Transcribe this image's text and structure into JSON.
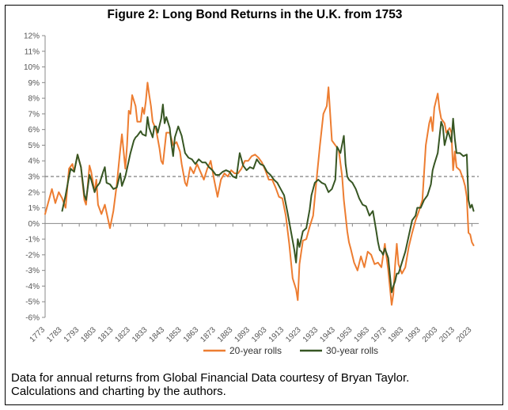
{
  "figure": {
    "title": "Figure 2: Long Bond Returns in the U.K. from 1753",
    "note_lines": [
      "Data for annual returns from Global Financial Data courtesy of Bryan Taylor.",
      "Calculations and charting by the authors."
    ]
  },
  "chart_data": {
    "type": "line",
    "title": "Figure 2: Long Bond Returns in the U.K. from 1753",
    "xlabel": "",
    "ylabel": "",
    "xlim": [
      1773,
      2027
    ],
    "ylim": [
      -6,
      12
    ],
    "x_ticks": [
      "1773",
      "1783",
      "1793",
      "1803",
      "1813",
      "1823",
      "1833",
      "1843",
      "1853",
      "1863",
      "1873",
      "1883",
      "1893",
      "1903",
      "1913",
      "1923",
      "1933",
      "1943",
      "1953",
      "1963",
      "1973",
      "1983",
      "1993",
      "2003",
      "2013",
      "2023"
    ],
    "y_ticks": [
      "12%",
      "11%",
      "10%",
      "9%",
      "8%",
      "7%",
      "6%",
      "5%",
      "4%",
      "3%",
      "2%",
      "1%",
      "0%",
      "-1%",
      "-2%",
      "-3%",
      "-4%",
      "-5%",
      "-6%"
    ],
    "reference_line": {
      "y": 3.0,
      "style": "dashed",
      "color": "#7f7f7f"
    },
    "grid": false,
    "legend_position": "bottom-right",
    "series": [
      {
        "name": "20-year rolls",
        "color": "#ed7d31",
        "points": [
          [
            1773,
            0.6
          ],
          [
            1775,
            1.4
          ],
          [
            1777,
            2.2
          ],
          [
            1779,
            1.3
          ],
          [
            1781,
            2.0
          ],
          [
            1783,
            1.6
          ],
          [
            1785,
            1.0
          ],
          [
            1787,
            3.5
          ],
          [
            1789,
            3.8
          ],
          [
            1790,
            3.3
          ],
          [
            1792,
            4.4
          ],
          [
            1794,
            3.6
          ],
          [
            1796,
            1.5
          ],
          [
            1797,
            1.2
          ],
          [
            1799,
            3.7
          ],
          [
            1800,
            3.3
          ],
          [
            1802,
            2.0
          ],
          [
            1803,
            2.8
          ],
          [
            1804,
            1.2
          ],
          [
            1806,
            0.6
          ],
          [
            1808,
            1.2
          ],
          [
            1810,
            0.2
          ],
          [
            1811,
            -0.3
          ],
          [
            1813,
            0.8
          ],
          [
            1815,
            2.5
          ],
          [
            1817,
            4.7
          ],
          [
            1818,
            5.7
          ],
          [
            1820,
            3.5
          ],
          [
            1821,
            5.0
          ],
          [
            1822,
            7.2
          ],
          [
            1823,
            7.0
          ],
          [
            1824,
            8.2
          ],
          [
            1826,
            7.5
          ],
          [
            1827,
            6.5
          ],
          [
            1829,
            6.5
          ],
          [
            1830,
            7.4
          ],
          [
            1831,
            7.0
          ],
          [
            1832,
            7.8
          ],
          [
            1833,
            9.0
          ],
          [
            1834,
            8.2
          ],
          [
            1835,
            7.5
          ],
          [
            1836,
            6.5
          ],
          [
            1838,
            6.0
          ],
          [
            1840,
            4.8
          ],
          [
            1841,
            4.0
          ],
          [
            1842,
            3.8
          ],
          [
            1844,
            5.8
          ],
          [
            1846,
            5.8
          ],
          [
            1848,
            5.0
          ],
          [
            1850,
            5.2
          ],
          [
            1852,
            4.6
          ],
          [
            1853,
            3.8
          ],
          [
            1855,
            2.6
          ],
          [
            1856,
            2.4
          ],
          [
            1858,
            3.6
          ],
          [
            1860,
            3.2
          ],
          [
            1862,
            3.8
          ],
          [
            1864,
            3.3
          ],
          [
            1866,
            2.8
          ],
          [
            1868,
            3.5
          ],
          [
            1870,
            4.0
          ],
          [
            1872,
            2.8
          ],
          [
            1874,
            1.7
          ],
          [
            1876,
            2.8
          ],
          [
            1878,
            3.2
          ],
          [
            1880,
            3.0
          ],
          [
            1882,
            3.4
          ],
          [
            1884,
            3.2
          ],
          [
            1886,
            3.2
          ],
          [
            1888,
            3.5
          ],
          [
            1890,
            4.0
          ],
          [
            1892,
            4.0
          ],
          [
            1894,
            4.3
          ],
          [
            1896,
            4.4
          ],
          [
            1898,
            4.2
          ],
          [
            1900,
            3.9
          ],
          [
            1902,
            3.4
          ],
          [
            1904,
            2.8
          ],
          [
            1906,
            2.8
          ],
          [
            1908,
            2.3
          ],
          [
            1910,
            1.7
          ],
          [
            1912,
            1.6
          ],
          [
            1914,
            0.5
          ],
          [
            1916,
            -1.3
          ],
          [
            1918,
            -3.5
          ],
          [
            1920,
            -4.2
          ],
          [
            1921,
            -4.9
          ],
          [
            1922,
            -2.6
          ],
          [
            1924,
            -1.1
          ],
          [
            1926,
            -1.0
          ],
          [
            1928,
            -0.2
          ],
          [
            1930,
            0.5
          ],
          [
            1932,
            2.8
          ],
          [
            1934,
            5.0
          ],
          [
            1936,
            7.0
          ],
          [
            1938,
            7.5
          ],
          [
            1939,
            8.7
          ],
          [
            1940,
            7.0
          ],
          [
            1941,
            5.3
          ],
          [
            1943,
            5.0
          ],
          [
            1945,
            4.7
          ],
          [
            1947,
            3.0
          ],
          [
            1948,
            1.5
          ],
          [
            1950,
            -0.5
          ],
          [
            1951,
            -1.2
          ],
          [
            1952,
            -1.6
          ],
          [
            1954,
            -2.5
          ],
          [
            1956,
            -3.0
          ],
          [
            1958,
            -2.1
          ],
          [
            1960,
            -2.8
          ],
          [
            1962,
            -1.8
          ],
          [
            1964,
            -2.0
          ],
          [
            1966,
            -2.6
          ],
          [
            1968,
            -2.5
          ],
          [
            1970,
            -2.8
          ],
          [
            1972,
            -1.3
          ],
          [
            1974,
            -3.0
          ],
          [
            1976,
            -5.2
          ],
          [
            1977,
            -4.5
          ],
          [
            1978,
            -2.7
          ],
          [
            1979,
            -1.3
          ],
          [
            1980,
            -2.6
          ],
          [
            1982,
            -3.2
          ],
          [
            1984,
            -2.8
          ],
          [
            1986,
            -1.5
          ],
          [
            1988,
            -0.6
          ],
          [
            1990,
            0.2
          ],
          [
            1992,
            0.8
          ],
          [
            1994,
            1.5
          ],
          [
            1996,
            5.0
          ],
          [
            1998,
            6.4
          ],
          [
            1999,
            6.8
          ],
          [
            2000,
            5.9
          ],
          [
            2001,
            7.4
          ],
          [
            2003,
            8.3
          ],
          [
            2004,
            7.3
          ],
          [
            2005,
            6.7
          ],
          [
            2007,
            6.4
          ],
          [
            2008,
            5.8
          ],
          [
            2010,
            6.1
          ],
          [
            2011,
            5.8
          ],
          [
            2012,
            3.4
          ],
          [
            2013,
            4.6
          ],
          [
            2014,
            3.6
          ],
          [
            2016,
            3.4
          ],
          [
            2018,
            2.8
          ],
          [
            2019,
            2.4
          ],
          [
            2020,
            1.7
          ],
          [
            2021,
            -0.6
          ],
          [
            2022,
            -0.7
          ],
          [
            2023,
            -1.2
          ],
          [
            2024,
            -1.4
          ]
        ]
      },
      {
        "name": "30-year rolls",
        "color": "#375623",
        "points": [
          [
            1783,
            0.8
          ],
          [
            1785,
            1.8
          ],
          [
            1787,
            3.0
          ],
          [
            1788,
            3.5
          ],
          [
            1790,
            3.3
          ],
          [
            1792,
            4.4
          ],
          [
            1794,
            3.6
          ],
          [
            1796,
            1.8
          ],
          [
            1797,
            1.5
          ],
          [
            1799,
            3.1
          ],
          [
            1800,
            2.8
          ],
          [
            1802,
            2.0
          ],
          [
            1803,
            2.3
          ],
          [
            1805,
            2.6
          ],
          [
            1807,
            3.3
          ],
          [
            1808,
            3.6
          ],
          [
            1809,
            2.6
          ],
          [
            1811,
            2.5
          ],
          [
            1813,
            2.2
          ],
          [
            1815,
            2.3
          ],
          [
            1817,
            3.2
          ],
          [
            1818,
            2.4
          ],
          [
            1820,
            3.0
          ],
          [
            1822,
            4.0
          ],
          [
            1823,
            4.5
          ],
          [
            1825,
            5.3
          ],
          [
            1826,
            5.5
          ],
          [
            1827,
            5.6
          ],
          [
            1829,
            5.9
          ],
          [
            1830,
            5.7
          ],
          [
            1832,
            5.6
          ],
          [
            1833,
            6.8
          ],
          [
            1834,
            6.1
          ],
          [
            1836,
            5.5
          ],
          [
            1837,
            6.2
          ],
          [
            1838,
            6.2
          ],
          [
            1839,
            5.8
          ],
          [
            1841,
            6.7
          ],
          [
            1842,
            7.6
          ],
          [
            1843,
            6.4
          ],
          [
            1844,
            6.8
          ],
          [
            1846,
            6.1
          ],
          [
            1847,
            5.1
          ],
          [
            1848,
            4.3
          ],
          [
            1849,
            5.5
          ],
          [
            1851,
            6.2
          ],
          [
            1853,
            5.6
          ],
          [
            1855,
            4.5
          ],
          [
            1857,
            4.2
          ],
          [
            1859,
            4.1
          ],
          [
            1861,
            3.8
          ],
          [
            1863,
            4.1
          ],
          [
            1865,
            3.9
          ],
          [
            1867,
            3.9
          ],
          [
            1869,
            3.6
          ],
          [
            1871,
            3.4
          ],
          [
            1873,
            3.1
          ],
          [
            1875,
            3.1
          ],
          [
            1877,
            3.3
          ],
          [
            1879,
            3.4
          ],
          [
            1881,
            3.3
          ],
          [
            1883,
            3.0
          ],
          [
            1885,
            2.9
          ],
          [
            1887,
            4.5
          ],
          [
            1889,
            3.7
          ],
          [
            1891,
            3.4
          ],
          [
            1893,
            3.6
          ],
          [
            1895,
            3.5
          ],
          [
            1897,
            4.1
          ],
          [
            1899,
            3.8
          ],
          [
            1901,
            3.7
          ],
          [
            1903,
            3.3
          ],
          [
            1905,
            3.1
          ],
          [
            1907,
            2.8
          ],
          [
            1909,
            2.6
          ],
          [
            1911,
            2.2
          ],
          [
            1913,
            1.8
          ],
          [
            1915,
            0.7
          ],
          [
            1917,
            -0.5
          ],
          [
            1919,
            -1.7
          ],
          [
            1920,
            -2.5
          ],
          [
            1921,
            -1.0
          ],
          [
            1922,
            -1.5
          ],
          [
            1924,
            -0.5
          ],
          [
            1926,
            -0.3
          ],
          [
            1928,
            0.9
          ],
          [
            1929,
            1.8
          ],
          [
            1931,
            2.6
          ],
          [
            1933,
            2.8
          ],
          [
            1935,
            2.6
          ],
          [
            1937,
            2.5
          ],
          [
            1939,
            2.0
          ],
          [
            1941,
            2.2
          ],
          [
            1943,
            2.8
          ],
          [
            1944,
            4.9
          ],
          [
            1945,
            4.7
          ],
          [
            1946,
            4.5
          ],
          [
            1948,
            5.6
          ],
          [
            1949,
            3.8
          ],
          [
            1950,
            3.0
          ],
          [
            1951,
            2.8
          ],
          [
            1953,
            2.6
          ],
          [
            1955,
            2.2
          ],
          [
            1957,
            1.6
          ],
          [
            1959,
            1.2
          ],
          [
            1961,
            1.1
          ],
          [
            1963,
            0.5
          ],
          [
            1965,
            0.8
          ],
          [
            1967,
            -0.5
          ],
          [
            1968,
            -1.2
          ],
          [
            1969,
            -1.7
          ],
          [
            1970,
            -1.8
          ],
          [
            1971,
            -2.0
          ],
          [
            1972,
            -1.6
          ],
          [
            1974,
            -2.2
          ],
          [
            1976,
            -4.4
          ],
          [
            1977,
            -4.0
          ],
          [
            1978,
            -3.7
          ],
          [
            1979,
            -3.2
          ],
          [
            1980,
            -3.2
          ],
          [
            1982,
            -2.5
          ],
          [
            1984,
            -1.8
          ],
          [
            1986,
            -0.8
          ],
          [
            1988,
            0.2
          ],
          [
            1990,
            0.5
          ],
          [
            1991,
            1.0
          ],
          [
            1993,
            1.0
          ],
          [
            1995,
            1.5
          ],
          [
            1997,
            1.8
          ],
          [
            1999,
            2.5
          ],
          [
            2000,
            3.4
          ],
          [
            2001,
            3.8
          ],
          [
            2003,
            4.5
          ],
          [
            2004,
            5.5
          ],
          [
            2005,
            6.5
          ],
          [
            2006,
            6.2
          ],
          [
            2007,
            5.0
          ],
          [
            2009,
            5.9
          ],
          [
            2011,
            5.2
          ],
          [
            2012,
            6.7
          ],
          [
            2013,
            5.4
          ],
          [
            2014,
            4.5
          ],
          [
            2016,
            4.5
          ],
          [
            2018,
            4.3
          ],
          [
            2020,
            4.4
          ],
          [
            2021,
            1.5
          ],
          [
            2022,
            1.0
          ],
          [
            2023,
            1.2
          ],
          [
            2024,
            0.8
          ]
        ]
      }
    ]
  }
}
